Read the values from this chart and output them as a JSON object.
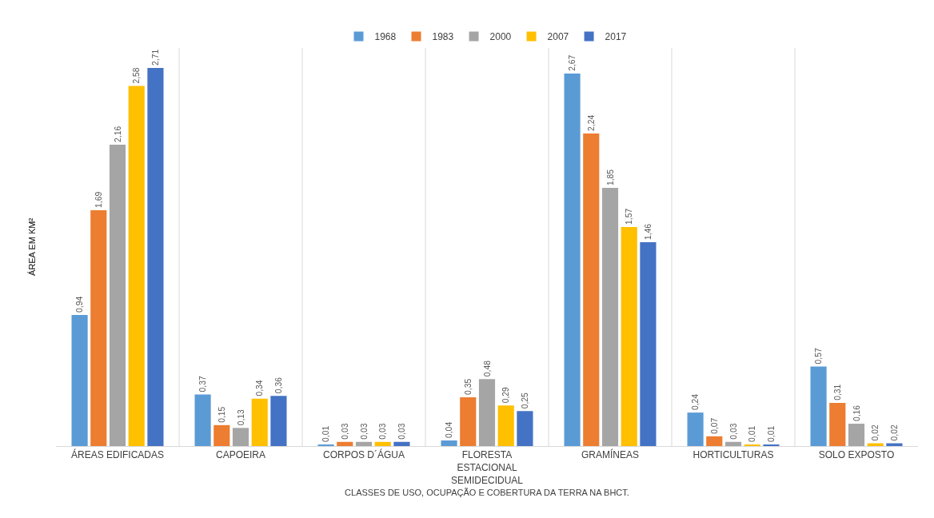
{
  "chart_data": {
    "type": "bar",
    "xlabel": "CLASSES DE USO, OCUPAÇÃO E COBERTURA DA TERRA NA BHCT.",
    "ylabel": "ÁREA EM KM²",
    "categories": [
      "ÁREAS EDIFICADAS",
      "CAPOEIRA",
      "CORPOS D´ÁGUA",
      "FLORESTA ESTACIONAL SEMIDECIDUAL",
      "GRAMÍNEAS",
      "HORTICULTURAS",
      "SOLO EXPOSTO"
    ],
    "series": [
      {
        "name": "1968",
        "color": "#5b9bd5",
        "values": [
          0.94,
          0.37,
          0.01,
          0.04,
          2.67,
          0.24,
          0.57
        ],
        "value_labels": [
          "0,94",
          "0,37",
          "0,01",
          "0,04",
          "2,67",
          "0,24",
          "0,57"
        ]
      },
      {
        "name": "1983",
        "color": "#ed7d31",
        "values": [
          1.69,
          0.15,
          0.03,
          0.35,
          2.24,
          0.07,
          0.31
        ],
        "value_labels": [
          "1,69",
          "0,15",
          "0,03",
          "0,35",
          "2,24",
          "0,07",
          "0,31"
        ]
      },
      {
        "name": "2000",
        "color": "#a5a5a5",
        "values": [
          2.16,
          0.13,
          0.03,
          0.48,
          1.85,
          0.03,
          0.16
        ],
        "value_labels": [
          "2,16",
          "0,13",
          "0,03",
          "0,48",
          "1,85",
          "0,03",
          "0,16"
        ]
      },
      {
        "name": "2007",
        "color": "#ffc000",
        "values": [
          2.58,
          0.34,
          0.03,
          0.29,
          1.57,
          0.01,
          0.02
        ],
        "value_labels": [
          "2,58",
          "0,34",
          "0,03",
          "0,29",
          "1,57",
          "0,01",
          "0,02"
        ]
      },
      {
        "name": "2017",
        "color": "#4472c4",
        "values": [
          2.71,
          0.36,
          0.03,
          0.25,
          1.46,
          0.01,
          0.02
        ],
        "value_labels": [
          "2,71",
          "0,36",
          "0,03",
          "0,25",
          "1,46",
          "0,01",
          "0,02"
        ]
      }
    ],
    "grid": "x",
    "legend": "top"
  }
}
